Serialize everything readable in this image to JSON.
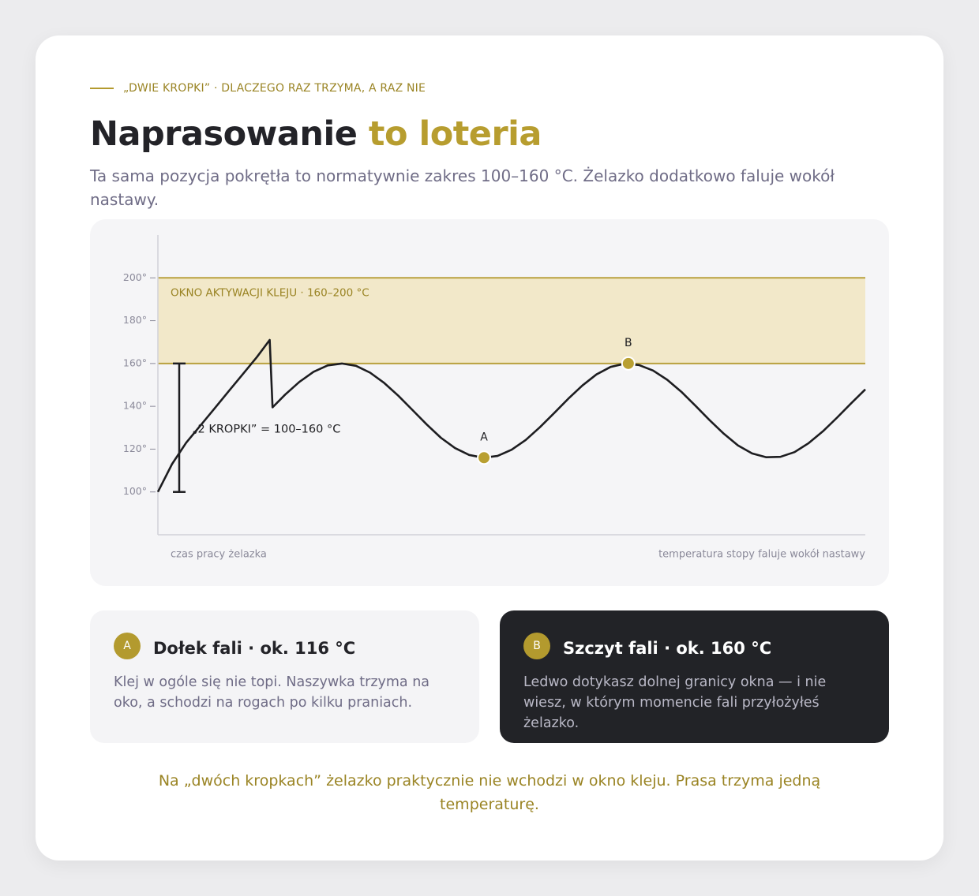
{
  "header": {
    "eyebrow": "„DWIE KROPKI” · DLACZEGO RAZ TRZYMA, A RAZ NIE",
    "title_plain": "Naprasowanie",
    "title_accent": "to loteria",
    "subtitle": "Ta sama pozycja pokrętła to normatywnie zakres 100–160 °C. Żelazko dodatkowo faluje wokół nastawy."
  },
  "chart_data": {
    "type": "line",
    "x": [
      0,
      2,
      4,
      6,
      8,
      10,
      12,
      14,
      15.8,
      16.2,
      18,
      20,
      22,
      24,
      26,
      28,
      30,
      32,
      34,
      36,
      38,
      40,
      42,
      44,
      46,
      48,
      50,
      52,
      54,
      56,
      58,
      60,
      62,
      64,
      66,
      68,
      70,
      72,
      74,
      76,
      78,
      80,
      82,
      84,
      86,
      88,
      90,
      92,
      94,
      96,
      98,
      100
    ],
    "values": [
      100,
      113,
      123,
      131,
      139,
      147,
      155,
      163,
      171,
      139.5,
      145.5,
      151.4,
      156.1,
      159.1,
      160,
      158.9,
      155.7,
      150.9,
      144.9,
      138.2,
      131.5,
      125.3,
      120.5,
      117.3,
      116,
      116.8,
      119.7,
      124.3,
      130.2,
      136.8,
      143.5,
      149.7,
      154.9,
      158.4,
      159.9,
      159.3,
      156.7,
      152.4,
      146.8,
      140.2,
      133.5,
      127.2,
      121.7,
      118,
      116.2,
      116.4,
      118.6,
      122.8,
      128.3,
      134.7,
      141.4,
      147.9
    ],
    "color": "#1d1d20",
    "xlim": [
      0,
      100
    ],
    "ylim": [
      80,
      220
    ],
    "yticks": [
      {
        "value": 100,
        "label": "100°"
      },
      {
        "value": 120,
        "label": "120°"
      },
      {
        "value": 140,
        "label": "140°"
      },
      {
        "value": 160,
        "label": "160°"
      },
      {
        "value": 180,
        "label": "180°"
      },
      {
        "value": 200,
        "label": "200°"
      }
    ],
    "band": {
      "from": 160,
      "to": 200,
      "label": "OKNO AKTYWACJI KLEJU · 160–200 °C",
      "color": "#f2e8c9",
      "line_color": "#b9a13f"
    },
    "range": {
      "from": 100,
      "to": 160,
      "label": "„2 KROPKI” = 100–160 °C"
    },
    "points": [
      {
        "label": "A",
        "x": 46.1,
        "y": 116
      },
      {
        "label": "B",
        "x": 66.5,
        "y": 160
      }
    ],
    "point_color": "#b9a032",
    "x_label_left": "czas pracy żelazka",
    "x_label_right": "temperatura stopy faluje wokół nastawy"
  },
  "cards": [
    {
      "badge": "A",
      "title": "Dołek fali · ok. 116 °C",
      "text": "Klej w ogóle się nie topi. Naszywka trzyma na oko, a schodzi na rogach po kilku praniach."
    },
    {
      "badge": "B",
      "title": "Szczyt fali · ok. 160 °C",
      "text": "Ledwo dotykasz dolnej granicy okna — i nie wiesz, w którym momencie fali przyłożyłeś żelazko."
    }
  ],
  "footer": "Na „dwóch kropkach” żelazko praktycznie nie wchodzi w okno kleju. Prasa trzyma jedną temperaturę."
}
